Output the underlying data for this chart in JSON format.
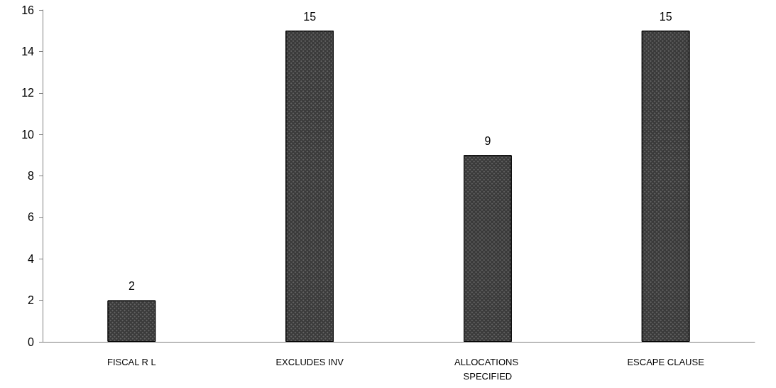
{
  "chart_data": {
    "type": "bar",
    "categories": [
      "FISCAL R L",
      "EXCLUDES INV",
      "ALLOCATIONS SPECIFIED",
      "ESCAPE CLAUSE"
    ],
    "values": [
      2,
      15,
      9,
      15
    ],
    "color": "#3a3a3a",
    "ylim": [
      0,
      16
    ],
    "yticks": [
      0,
      2,
      4,
      6,
      8,
      10,
      12,
      14,
      16
    ],
    "grid": false,
    "data_labels": true
  }
}
